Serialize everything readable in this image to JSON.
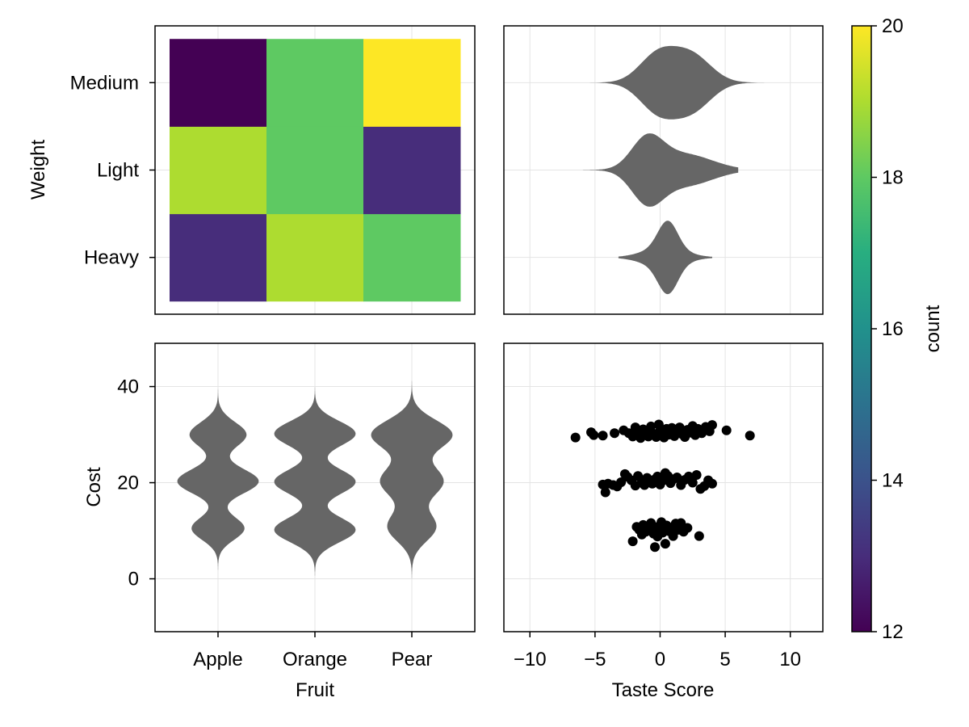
{
  "chart_data": [
    {
      "id": "heatmap",
      "type": "heatmap",
      "x_categories": [
        "Apple",
        "Orange",
        "Pear"
      ],
      "y_categories": [
        "Heavy",
        "Light",
        "Medium"
      ],
      "values": [
        [
          13,
          19,
          18
        ],
        [
          19,
          18,
          13
        ],
        [
          12,
          18,
          20
        ]
      ],
      "ylabel": "Weight",
      "colorbar": {
        "label": "count",
        "range": [
          12,
          20
        ],
        "ticks": [
          "12",
          "14",
          "16",
          "18",
          "20"
        ]
      }
    },
    {
      "id": "violin_horizontal",
      "type": "violin",
      "orientation": "horizontal",
      "categories": [
        "Heavy",
        "Light",
        "Medium"
      ],
      "xlim": [
        -12,
        12.5
      ],
      "xticks": [
        "−10",
        "−5",
        "0",
        "5",
        "10"
      ],
      "xtick_values": [
        -10,
        -5,
        0,
        5,
        10
      ],
      "series": [
        {
          "name": "Heavy",
          "min": -3.2,
          "max": 4.0,
          "components": [
            [
              0.6,
              0.75,
              1.0
            ],
            [
              0.3,
              1.6,
              0.35
            ]
          ]
        },
        {
          "name": "Light",
          "min": -6.5,
          "max": 6.0,
          "components": [
            [
              -1.0,
              1.2,
              1.0
            ],
            [
              1.8,
              2.2,
              0.55
            ]
          ]
        },
        {
          "name": "Medium",
          "min": -9.0,
          "max": 9.5,
          "components": [
            [
              -0.2,
              1.4,
              0.9
            ],
            [
              2.4,
              1.5,
              0.9
            ]
          ]
        }
      ]
    },
    {
      "id": "violin_vertical",
      "type": "violin",
      "orientation": "vertical",
      "categories": [
        "Apple",
        "Orange",
        "Pear"
      ],
      "xlabel": "Fruit",
      "ylabel": "Cost",
      "ylim": [
        -11,
        49
      ],
      "yticks": [
        "0",
        "20",
        "40"
      ],
      "ytick_values": [
        0,
        20,
        40
      ],
      "series": [
        {
          "name": "Apple",
          "min": 0,
          "max": 40,
          "components": [
            [
              10.5,
              2.4,
              0.65
            ],
            [
              20.3,
              2.6,
              1.0
            ],
            [
              30,
              2.6,
              0.7
            ]
          ]
        },
        {
          "name": "Orange",
          "min": 0,
          "max": 41,
          "components": [
            [
              10.2,
              2.6,
              0.75
            ],
            [
              20.2,
              2.6,
              0.75
            ],
            [
              30.2,
              2.6,
              0.75
            ]
          ]
        },
        {
          "name": "Pear",
          "min": -2,
          "max": 43,
          "components": [
            [
              10.8,
              3.0,
              0.6
            ],
            [
              20.3,
              3.2,
              0.78
            ],
            [
              30,
              3.0,
              1.0
            ]
          ]
        }
      ]
    },
    {
      "id": "scatter",
      "type": "scatter",
      "xlabel": "Taste Score",
      "xlim": [
        -12,
        12.5
      ],
      "ylim": [
        -11,
        49
      ],
      "xticks": [
        "−10",
        "−5",
        "0",
        "5",
        "10"
      ],
      "xtick_values": [
        -10,
        -5,
        0,
        5,
        10
      ],
      "yticks": [
        "0",
        "20",
        "40"
      ],
      "ytick_values": [
        0,
        20,
        40
      ],
      "points": [
        [
          -2.1,
          7.8
        ],
        [
          -1.8,
          10.8
        ],
        [
          -1.6,
          10.2
        ],
        [
          -1.3,
          11.2
        ],
        [
          -1.1,
          9.8
        ],
        [
          -0.9,
          10.6
        ],
        [
          -0.7,
          11.6
        ],
        [
          -0.5,
          9.4
        ],
        [
          -0.4,
          6.6
        ],
        [
          -0.3,
          10.2
        ],
        [
          -0.2,
          8.8
        ],
        [
          -0.1,
          10.9
        ],
        [
          0.1,
          11.8
        ],
        [
          0.2,
          9.6
        ],
        [
          0.3,
          10.4
        ],
        [
          0.4,
          7.3
        ],
        [
          0.5,
          11.1
        ],
        [
          0.7,
          9.9
        ],
        [
          0.9,
          10.6
        ],
        [
          1.0,
          8.9
        ],
        [
          1.2,
          11.5
        ],
        [
          1.4,
          10.2
        ],
        [
          1.6,
          11.6
        ],
        [
          1.8,
          9.8
        ],
        [
          2.1,
          10.6
        ],
        [
          3.0,
          8.9
        ],
        [
          -0.6,
          11.0
        ],
        [
          0.0,
          10.0
        ],
        [
          0.6,
          10.8
        ],
        [
          -1.4,
          9.2
        ],
        [
          -4.4,
          19.6
        ],
        [
          -4.2,
          18.0
        ],
        [
          -4.0,
          19.8
        ],
        [
          -3.6,
          19.5
        ],
        [
          -3.0,
          20.1
        ],
        [
          -2.7,
          21.8
        ],
        [
          -2.5,
          21.2
        ],
        [
          -2.2,
          20.5
        ],
        [
          -1.9,
          19.4
        ],
        [
          -1.7,
          21.4
        ],
        [
          -1.4,
          20.1
        ],
        [
          -1.2,
          19.5
        ],
        [
          -1.0,
          21.0
        ],
        [
          -0.8,
          20.3
        ],
        [
          -0.6,
          19.8
        ],
        [
          -0.4,
          20.7
        ],
        [
          -0.2,
          21.3
        ],
        [
          0.0,
          19.6
        ],
        [
          0.2,
          20.4
        ],
        [
          0.4,
          22.0
        ],
        [
          0.6,
          21.4
        ],
        [
          0.8,
          19.9
        ],
        [
          1.0,
          20.7
        ],
        [
          1.3,
          21.1
        ],
        [
          1.6,
          19.5
        ],
        [
          1.9,
          20.6
        ],
        [
          2.2,
          21.3
        ],
        [
          2.5,
          20.0
        ],
        [
          2.8,
          21.6
        ],
        [
          3.1,
          18.7
        ],
        [
          3.4,
          19.3
        ],
        [
          3.7,
          20.5
        ],
        [
          4.0,
          19.8
        ],
        [
          -3.3,
          19.2
        ],
        [
          -6.5,
          29.4
        ],
        [
          -5.3,
          30.5
        ],
        [
          -5.1,
          29.9
        ],
        [
          -4.4,
          29.8
        ],
        [
          -3.5,
          30.3
        ],
        [
          -2.8,
          30.9
        ],
        [
          -2.1,
          29.6
        ],
        [
          -1.9,
          31.5
        ],
        [
          -1.7,
          30.1
        ],
        [
          -1.5,
          29.3
        ],
        [
          -1.3,
          31.1
        ],
        [
          -1.1,
          30.4
        ],
        [
          -0.9,
          29.6
        ],
        [
          -0.7,
          31.7
        ],
        [
          -0.5,
          30.2
        ],
        [
          -0.3,
          29.5
        ],
        [
          -0.1,
          32.1
        ],
        [
          0.1,
          30.8
        ],
        [
          0.3,
          29.4
        ],
        [
          0.5,
          31.2
        ],
        [
          0.7,
          30.0
        ],
        [
          0.9,
          31.4
        ],
        [
          1.1,
          29.7
        ],
        [
          1.3,
          30.6
        ],
        [
          1.5,
          31.5
        ],
        [
          1.7,
          30.1
        ],
        [
          1.9,
          29.5
        ],
        [
          2.1,
          31.0
        ],
        [
          2.3,
          30.4
        ],
        [
          2.5,
          31.8
        ],
        [
          2.7,
          29.9
        ],
        [
          2.9,
          31.2
        ],
        [
          3.2,
          30.3
        ],
        [
          3.5,
          31.6
        ],
        [
          3.8,
          30.7
        ],
        [
          4.0,
          32.0
        ],
        [
          5.1,
          30.9
        ],
        [
          6.9,
          29.8
        ],
        [
          -2.4,
          30.3
        ],
        [
          0.0,
          30.8
        ]
      ]
    }
  ]
}
